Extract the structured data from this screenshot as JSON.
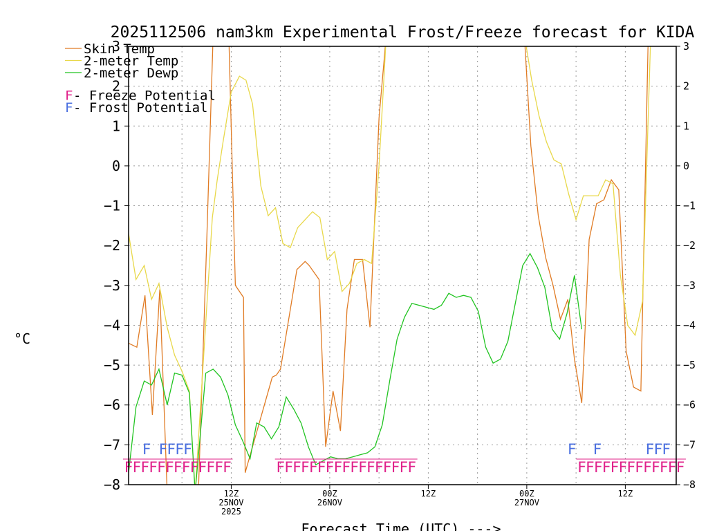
{
  "chart_data": {
    "type": "line",
    "title": "2025112506 nam3km Experimental Frost/Freeze forecast for KIDA",
    "ylabel": "°C",
    "xlabel": "Forecast Time (UTC) --->",
    "ylim": [
      -8,
      3
    ],
    "y_ticks": [
      -8,
      -7,
      -6,
      -5,
      -4,
      -3,
      -2,
      -1,
      0,
      1,
      2,
      3
    ],
    "y_tick_labels": [
      "−8",
      "−7",
      "−6",
      "−5",
      "−4",
      "−3",
      "−2",
      "−1",
      "0",
      "1",
      "2",
      "3"
    ],
    "x_range_hours": [
      -6.5,
      60.2
    ],
    "x_ticks": [
      {
        "hour": 6,
        "lines": [
          "12Z",
          "25NOV",
          "2025"
        ]
      },
      {
        "hour": 18,
        "lines": [
          "00Z",
          "26NOV"
        ]
      },
      {
        "hour": 30,
        "lines": [
          "12Z"
        ]
      },
      {
        "hour": 42,
        "lines": [
          "00Z",
          "27NOV"
        ]
      },
      {
        "hour": 54,
        "lines": [
          "12Z"
        ]
      }
    ],
    "grid_hours": [
      0,
      6,
      12,
      18,
      24,
      30,
      36,
      42,
      48,
      54
    ],
    "legend": [
      {
        "label": "Skin Temp",
        "color": "#e07b24"
      },
      {
        "label": "2-meter Temp",
        "color": "#e8d84a"
      },
      {
        "label": "2-meter Dewp",
        "color": "#21c421"
      },
      {
        "marker": "F",
        "label": " - Freeze Potential",
        "color": "#e0208a"
      },
      {
        "marker": "F",
        "label": " - Frost Potential",
        "color": "#4a6fe0"
      }
    ],
    "series": [
      {
        "name": "Skin Temp",
        "color": "#e07b24",
        "points": [
          [
            -6.5,
            -4.45
          ],
          [
            -5.5,
            -4.55
          ],
          [
            -4.5,
            -3.25
          ],
          [
            -3.6,
            -6.25
          ],
          [
            -2.7,
            -3.1
          ],
          [
            -1.8,
            -8.2
          ],
          [
            2,
            -8.2
          ],
          [
            3,
            -2
          ],
          [
            3.8,
            3.3
          ],
          [
            5.7,
            3.3
          ],
          [
            6.5,
            -3
          ],
          [
            7.5,
            -3.3
          ],
          [
            7.7,
            -7.7
          ],
          [
            11,
            -5.3
          ],
          [
            11.5,
            -5.25
          ],
          [
            12,
            -5.1
          ],
          [
            14,
            -2.6
          ],
          [
            15,
            -2.4
          ],
          [
            15.5,
            -2.5
          ],
          [
            16.7,
            -2.85
          ],
          [
            17.5,
            -7.05
          ],
          [
            18.4,
            -5.65
          ],
          [
            19.3,
            -6.65
          ],
          [
            20.1,
            -3.6
          ],
          [
            21,
            -2.35
          ],
          [
            22,
            -2.35
          ],
          [
            22.9,
            -4.05
          ],
          [
            24,
            1.2
          ],
          [
            24.9,
            3.3
          ],
          [
            41.7,
            3.3
          ],
          [
            42.5,
            0.5
          ],
          [
            43.4,
            -1.25
          ],
          [
            44.3,
            -2.3
          ],
          [
            45.2,
            -3
          ],
          [
            46.1,
            -3.85
          ],
          [
            47,
            -3.35
          ],
          [
            47.8,
            -4.85
          ],
          [
            48.7,
            -5.95
          ],
          [
            49.6,
            -1.85
          ],
          [
            50.5,
            -0.95
          ],
          [
            51.4,
            -0.85
          ],
          [
            52.3,
            -0.35
          ],
          [
            53.2,
            -0.6
          ],
          [
            54.1,
            -4.65
          ],
          [
            55,
            -5.55
          ],
          [
            55.9,
            -5.65
          ],
          [
            56.8,
            3.3
          ]
        ]
      },
      {
        "name": "2-meter Temp",
        "color": "#e8d84a",
        "points": [
          [
            -6.5,
            -1.7
          ],
          [
            -5.6,
            -2.85
          ],
          [
            -4.6,
            -2.5
          ],
          [
            -3.7,
            -3.35
          ],
          [
            -2.8,
            -2.95
          ],
          [
            -1.8,
            -4.05
          ],
          [
            -0.9,
            -4.75
          ],
          [
            0,
            -5.15
          ],
          [
            0.9,
            -5.65
          ],
          [
            1.6,
            -8.2
          ],
          [
            3.7,
            -1.3
          ],
          [
            4.3,
            -0.35
          ],
          [
            5,
            0.6
          ],
          [
            6,
            1.85
          ],
          [
            7,
            2.25
          ],
          [
            7.8,
            2.15
          ],
          [
            8.6,
            1.55
          ],
          [
            9.6,
            -0.5
          ],
          [
            10.5,
            -1.25
          ],
          [
            11.4,
            -1.05
          ],
          [
            12.3,
            -1.95
          ],
          [
            13.2,
            -2.05
          ],
          [
            14.1,
            -1.55
          ],
          [
            15,
            -1.35
          ],
          [
            15.9,
            -1.15
          ],
          [
            16.8,
            -1.3
          ],
          [
            17.7,
            -2.35
          ],
          [
            18.6,
            -2.15
          ],
          [
            19.5,
            -3.15
          ],
          [
            20.4,
            -2.95
          ],
          [
            21.3,
            -2.45
          ],
          [
            22.2,
            -2.35
          ],
          [
            23.1,
            -2.45
          ],
          [
            24,
            0
          ],
          [
            24.9,
            3.3
          ],
          [
            41.7,
            3.3
          ],
          [
            42.6,
            2.15
          ],
          [
            43.5,
            1.25
          ],
          [
            44.4,
            0.6
          ],
          [
            45.3,
            0.15
          ],
          [
            46.2,
            0.05
          ],
          [
            47.1,
            -0.7
          ],
          [
            48,
            -1.35
          ],
          [
            48.9,
            -0.75
          ],
          [
            49.8,
            -0.75
          ],
          [
            50.7,
            -0.75
          ],
          [
            51.6,
            -0.35
          ],
          [
            52.5,
            -0.45
          ],
          [
            53.4,
            -2.75
          ],
          [
            54.3,
            -4
          ],
          [
            55.2,
            -4.25
          ],
          [
            56.1,
            -3.4
          ],
          [
            57.1,
            3.3
          ]
        ]
      },
      {
        "name": "2-meter Dewp",
        "color": "#21c421",
        "points": [
          [
            -6.5,
            -7.7
          ],
          [
            -5.6,
            -6.05
          ],
          [
            -4.6,
            -5.4
          ],
          [
            -3.7,
            -5.5
          ],
          [
            -2.8,
            -5.1
          ],
          [
            -1.8,
            -6
          ],
          [
            -0.9,
            -5.2
          ],
          [
            0,
            -5.25
          ],
          [
            0.9,
            -5.7
          ],
          [
            1.6,
            -8.2
          ],
          [
            2.9,
            -5.2
          ],
          [
            3.8,
            -5.1
          ],
          [
            4.7,
            -5.3
          ],
          [
            5.6,
            -5.75
          ],
          [
            6.5,
            -6.5
          ],
          [
            7.4,
            -6.9
          ],
          [
            8.3,
            -7.35
          ],
          [
            9.1,
            -6.45
          ],
          [
            10,
            -6.55
          ],
          [
            10.9,
            -6.85
          ],
          [
            11.8,
            -6.55
          ],
          [
            12.7,
            -5.8
          ],
          [
            13.6,
            -6.1
          ],
          [
            14.5,
            -6.45
          ],
          [
            15.4,
            -7.05
          ],
          [
            16.3,
            -7.5
          ],
          [
            17.2,
            -7.4
          ],
          [
            18.1,
            -7.3
          ],
          [
            19,
            -7.35
          ],
          [
            19.9,
            -7.35
          ],
          [
            20.8,
            -7.3
          ],
          [
            21.7,
            -7.25
          ],
          [
            22.6,
            -7.2
          ],
          [
            23.5,
            -7.05
          ],
          [
            24.4,
            -6.5
          ],
          [
            25.3,
            -5.4
          ],
          [
            26.2,
            -4.35
          ],
          [
            27.1,
            -3.8
          ],
          [
            28,
            -3.45
          ],
          [
            28.9,
            -3.5
          ],
          [
            29.8,
            -3.55
          ],
          [
            30.7,
            -3.6
          ],
          [
            31.6,
            -3.5
          ],
          [
            32.5,
            -3.2
          ],
          [
            33.4,
            -3.3
          ],
          [
            34.3,
            -3.25
          ],
          [
            35.2,
            -3.3
          ],
          [
            36.1,
            -3.65
          ],
          [
            37,
            -4.55
          ],
          [
            37.9,
            -4.95
          ],
          [
            38.8,
            -4.85
          ],
          [
            39.7,
            -4.4
          ],
          [
            40.6,
            -3.45
          ],
          [
            41.5,
            -2.5
          ],
          [
            42.4,
            -2.2
          ],
          [
            43.3,
            -2.55
          ],
          [
            44.2,
            -3.05
          ],
          [
            45.1,
            -4.1
          ],
          [
            46,
            -4.35
          ],
          [
            46.9,
            -3.7
          ],
          [
            47.8,
            -2.75
          ],
          [
            48.7,
            -4.1
          ]
        ]
      }
    ],
    "freeze_flags": [
      {
        "start": -6.5,
        "count": 13
      },
      {
        "start": 12,
        "count": 17
      },
      {
        "start": 48.7,
        "count": 13
      }
    ],
    "frost_flags": [
      {
        "start": -4.3,
        "count": 1
      },
      {
        "start": -2.3,
        "count": 4
      },
      {
        "start": 47.5,
        "count": 1
      },
      {
        "start": 50.6,
        "count": 1
      },
      {
        "start": 57,
        "count": 3
      }
    ],
    "flag_letter": "F"
  }
}
